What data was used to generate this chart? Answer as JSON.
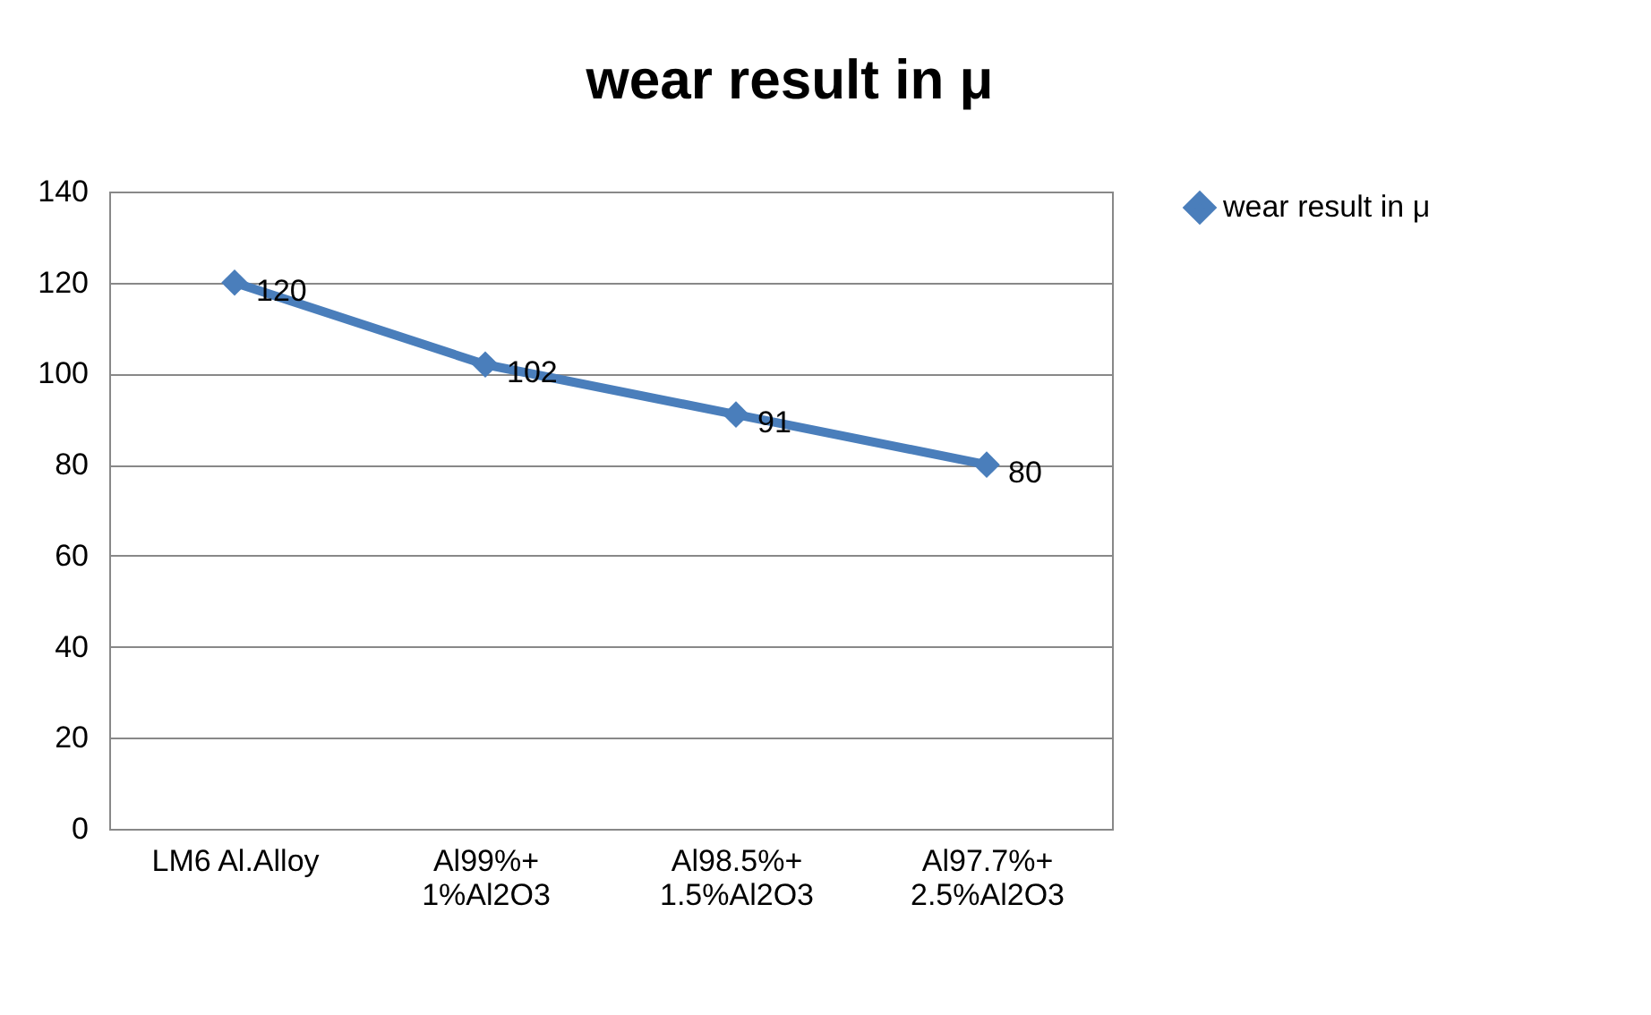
{
  "chart_data": {
    "type": "line",
    "title": "wear result in μ",
    "categories": [
      "LM6 Al.Alloy",
      "Al99%+\n1%Al2O3",
      "Al98.5%+\n1.5%Al2O3",
      "Al97.7%+\n2.5%Al2O3"
    ],
    "series": [
      {
        "name": "wear result in μ",
        "color": "#4a7ebb",
        "values": [
          120,
          102,
          91,
          80
        ]
      }
    ],
    "ylim": [
      0,
      140
    ],
    "yticks": [
      0,
      20,
      40,
      60,
      80,
      100,
      120,
      140
    ],
    "grid": "y",
    "legend": "right",
    "marker": "diamond",
    "data_labels": true
  }
}
